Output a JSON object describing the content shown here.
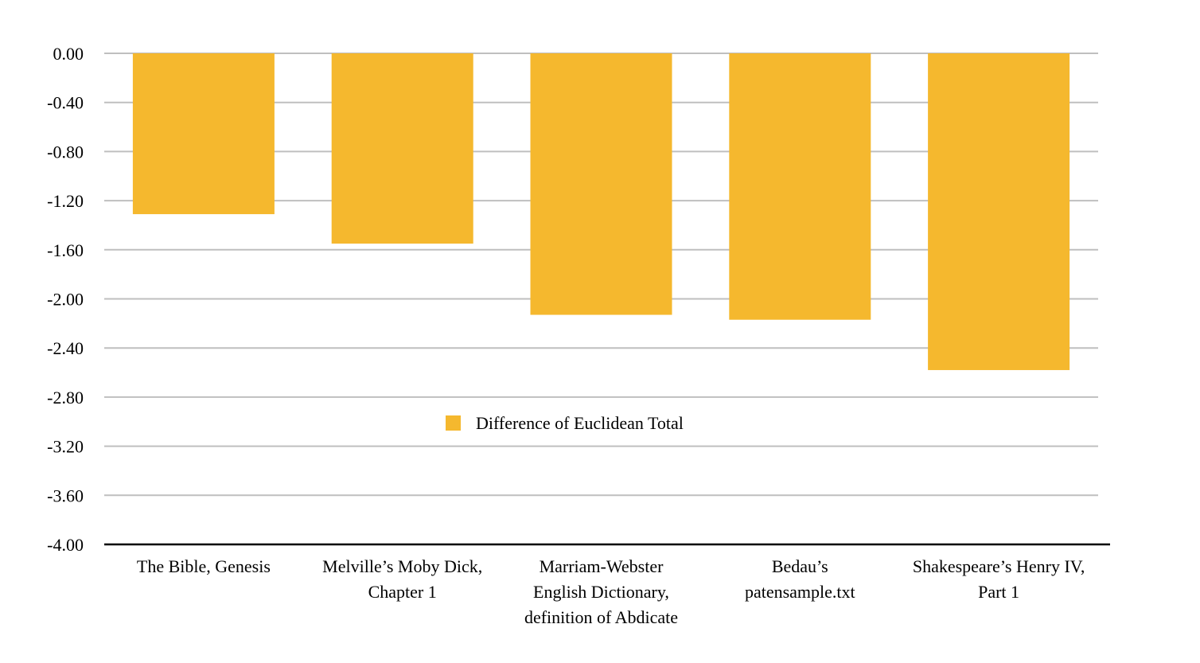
{
  "chart_data": {
    "type": "bar",
    "title": "",
    "xlabel": "",
    "ylabel": "",
    "categories": [
      [
        "The Bible, Genesis"
      ],
      [
        "Melville’s Moby Dick,",
        "Chapter 1"
      ],
      [
        "Marriam-Webster",
        "English Dictionary,",
        "definition of Abdicate"
      ],
      [
        "Bedau’s",
        "patensample.txt"
      ],
      [
        "Shakespeare’s Henry IV,",
        "Part 1"
      ]
    ],
    "series": [
      {
        "name": "Difference of Euclidean Total",
        "color": "#F5B82E",
        "values": [
          -1.31,
          -1.55,
          -2.13,
          -2.17,
          -2.58
        ]
      }
    ],
    "ylim": [
      -4.0,
      0.0
    ],
    "yticks": [
      "0.00",
      "-0.40",
      "-0.80",
      "-1.20",
      "-1.60",
      "-2.00",
      "-2.40",
      "-2.80",
      "-3.20",
      "-3.60",
      "-4.00"
    ],
    "grid": true,
    "grid_color": "#BFBFBF",
    "axis_color": "#000000",
    "legend_placement": "center, inside plot area"
  }
}
